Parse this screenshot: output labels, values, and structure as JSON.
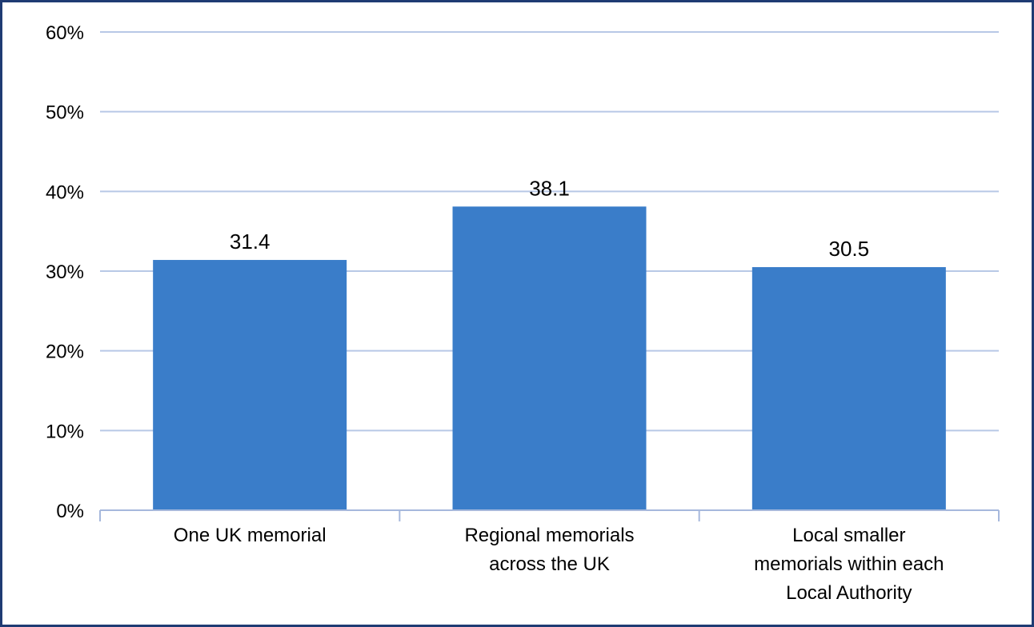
{
  "chart_data": {
    "type": "bar",
    "categories": [
      [
        "One UK memorial"
      ],
      [
        "Regional memorials",
        "across the UK"
      ],
      [
        "Local smaller",
        "memorials within each",
        "Local Authority"
      ]
    ],
    "values": [
      31.4,
      38.1,
      30.5
    ],
    "data_labels": [
      "31.4",
      "38.1",
      "30.5"
    ],
    "ylim": [
      0,
      60
    ],
    "y_ticks": [
      0,
      10,
      20,
      30,
      40,
      50,
      60
    ],
    "y_tick_labels": [
      "0%",
      "10%",
      "20%",
      "30%",
      "40%",
      "50%",
      "60%"
    ],
    "title": "",
    "xlabel": "",
    "ylabel": "",
    "grid": true,
    "legend": "none",
    "colors": {
      "bar": "#3a7dc9",
      "grid": "#b8c8e6",
      "axis": "#a6b8dc",
      "border": "#1f3b73"
    }
  }
}
